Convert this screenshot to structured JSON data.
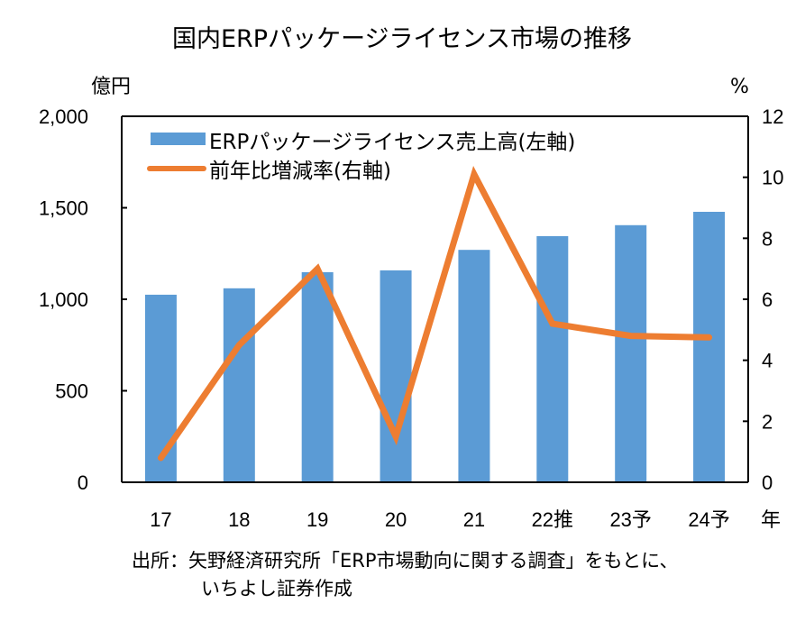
{
  "chart_data": {
    "type": "bar",
    "title": "国内ERPパッケージライセンス市場の推移",
    "categories": [
      "17",
      "18",
      "19",
      "20",
      "21",
      "22推",
      "23予",
      "24予"
    ],
    "xlabel": "年",
    "ylabel": "億円",
    "ylabel_right": "%",
    "ylim": [
      0,
      2000
    ],
    "ylim_right": [
      0,
      12
    ],
    "yticks": [
      "0",
      "500",
      "1,000",
      "1,500",
      "2,000"
    ],
    "yticks_right": [
      "0",
      "2",
      "4",
      "6",
      "8",
      "10",
      "12"
    ],
    "grid": false,
    "legend_position": "top-left",
    "series": [
      {
        "name": "ERPパッケージライセンス売上高(左軸)",
        "type": "bar",
        "axis": "left",
        "color": "#5B9BD5",
        "values": [
          1025,
          1060,
          1148,
          1158,
          1270,
          1345,
          1405,
          1478
        ]
      },
      {
        "name": "前年比増減率(右軸)",
        "type": "line",
        "axis": "right",
        "color": "#ED7D31",
        "values": [
          0.8,
          4.5,
          7.0,
          1.5,
          10.1,
          5.2,
          4.8,
          4.75
        ]
      }
    ]
  },
  "source_note": {
    "line1": "出所：矢野経済研究所「ERP市場動向に関する調査」をもとに、",
    "line2": "いちよし証券作成"
  }
}
